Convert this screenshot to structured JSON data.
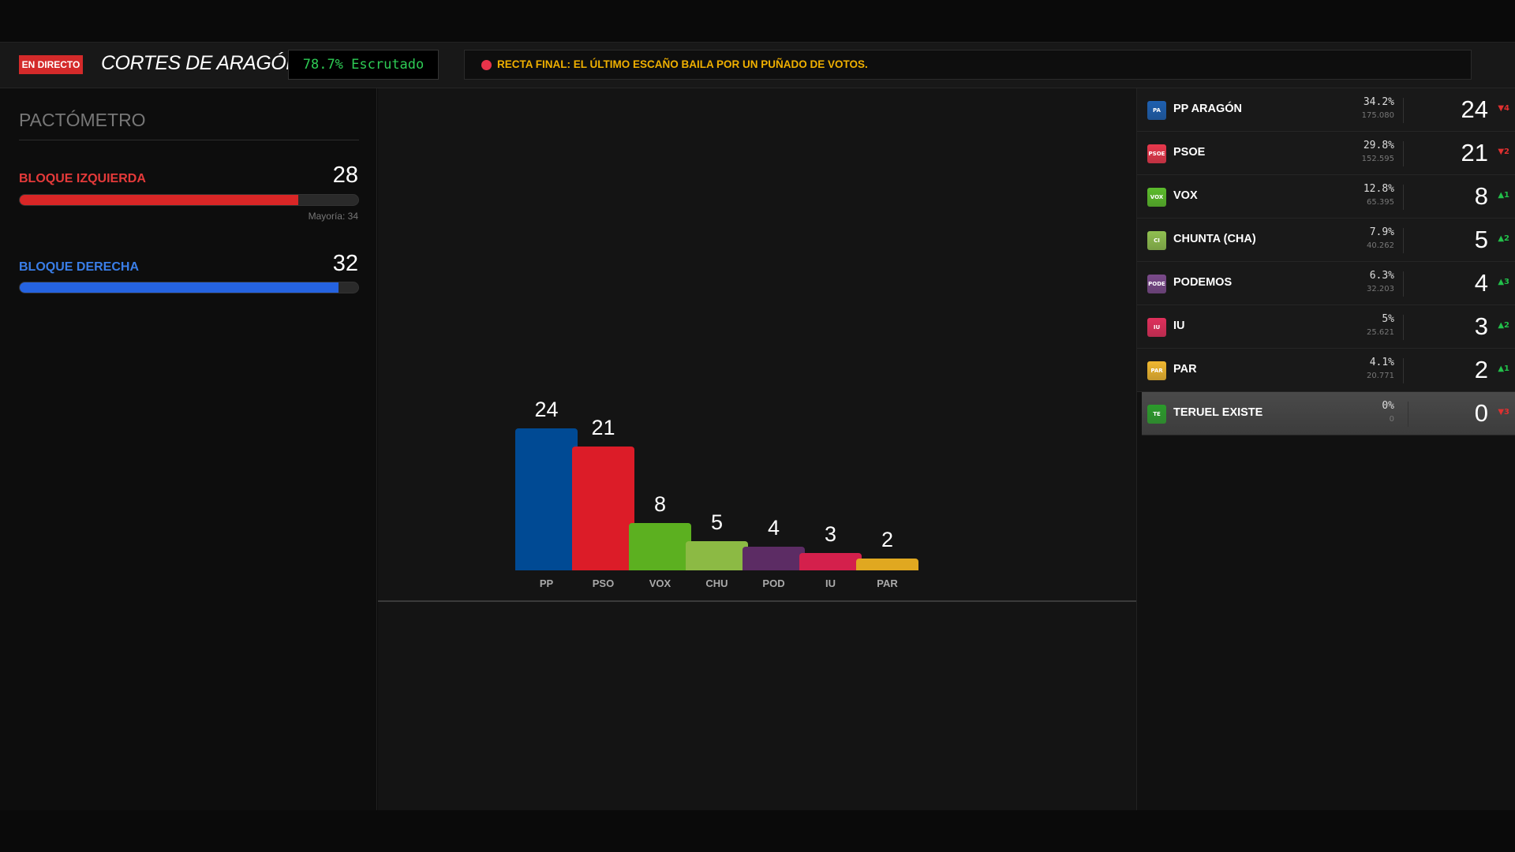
{
  "header": {
    "badge": "EN DIRECTO",
    "title": "CORTES DE ARAGÓN",
    "escrutado": "78.7% Escrutado",
    "ticker": "RECTA FINAL: EL ÚLTIMO ESCAÑO BAILA POR UN PUÑADO DE VOTOS."
  },
  "pactometro": {
    "title": "PACTÓMETRO",
    "majority_label": "Mayoría: 34",
    "majority": 34,
    "blocks": [
      {
        "label": "BLOQUE IZQUIERDA",
        "seats": "28",
        "value": 28,
        "color": "#d92626",
        "label_color": "#e53a3a"
      },
      {
        "label": "BLOQUE DERECHA",
        "seats": "32",
        "value": 32,
        "color": "#2563e0",
        "label_color": "#3a7ee8"
      }
    ]
  },
  "chart_data": {
    "type": "bar",
    "categories": [
      "PP",
      "PSO",
      "VOX",
      "CHU",
      "POD",
      "IU",
      "PAR"
    ],
    "values": [
      24,
      21,
      8,
      5,
      4,
      3,
      2
    ],
    "colors": [
      "#004a94",
      "#dc1c28",
      "#5cb020",
      "#8cba44",
      "#5c2c64",
      "#d4204c",
      "#e0a820"
    ],
    "ylim": [
      0,
      24
    ],
    "grid": false
  },
  "parties": [
    {
      "logo": "PA",
      "name": "PP ARAGÓN",
      "pct": "34.2%",
      "votes": "175.080",
      "seats": "24",
      "change": "▼4",
      "dir": "down",
      "color": "#1e60b0"
    },
    {
      "logo": "PSOE",
      "name": "PSOE",
      "pct": "29.8%",
      "votes": "152.595",
      "seats": "21",
      "change": "▼2",
      "dir": "down",
      "color": "#e8384c"
    },
    {
      "logo": "VOX",
      "name": "VOX",
      "pct": "12.8%",
      "votes": "65.395",
      "seats": "8",
      "change": "▲1",
      "dir": "up",
      "color": "#5cbc2c"
    },
    {
      "logo": "CI",
      "name": "CHUNTA (CHA)",
      "pct": "7.9%",
      "votes": "40.262",
      "seats": "5",
      "change": "▲2",
      "dir": "up",
      "color": "#90c050"
    },
    {
      "logo": "PODE",
      "name": "PODEMOS",
      "pct": "6.3%",
      "votes": "32.203",
      "seats": "4",
      "change": "▲3",
      "dir": "up",
      "color": "#7a4a8a"
    },
    {
      "logo": "IU",
      "name": "IU",
      "pct": "5%",
      "votes": "25.621",
      "seats": "3",
      "change": "▲2",
      "dir": "up",
      "color": "#e0305c"
    },
    {
      "logo": "PAR",
      "name": "PAR",
      "pct": "4.1%",
      "votes": "20.771",
      "seats": "2",
      "change": "▲1",
      "dir": "up",
      "color": "#f0b830"
    },
    {
      "logo": "TE",
      "name": "TERUEL EXISTE",
      "pct": "0%",
      "votes": "0",
      "seats": "0",
      "change": "▼3",
      "dir": "down",
      "color": "#2a9a2a",
      "highlight": true
    }
  ]
}
